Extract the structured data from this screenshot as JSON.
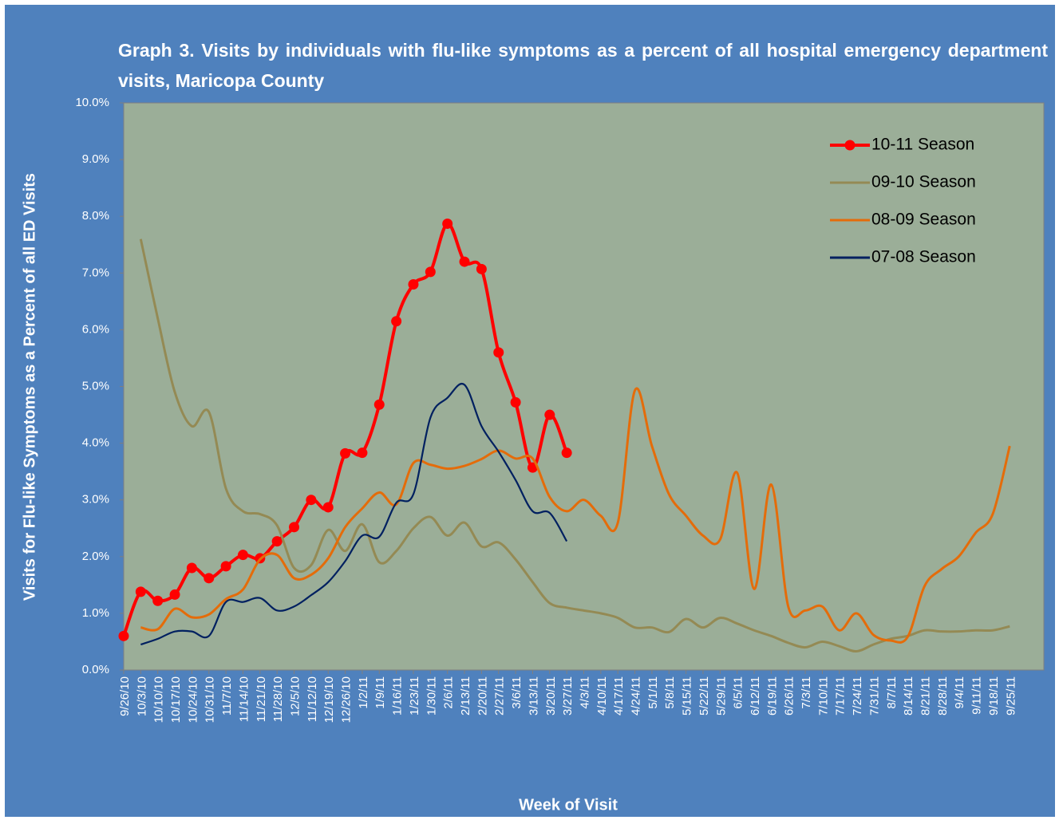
{
  "chart_data": {
    "type": "line",
    "title": "Graph 3. Visits by individuals  with flu-like symptoms  as a percent  of all hospital  emergency department visits, Maricopa  County",
    "x_label": "Week of Visit",
    "y_label": "Visits for Flu-like Symptoms as a Percent of all ED Visits",
    "categories": [
      "9/26/10",
      "10/3/10",
      "10/10/10",
      "10/17/10",
      "10/24/10",
      "10/31/10",
      "11/7/10",
      "11/14/10",
      "11/21/10",
      "11/28/10",
      "12/5/10",
      "11/12/10",
      "12/19/10",
      "12/26/10",
      "1/2/11",
      "1/9/11",
      "1/16/11",
      "1/23/11",
      "1/30/11",
      "2/6/11",
      "2/13/11",
      "2/20/11",
      "2/27/11",
      "3/6/11",
      "3/13/11",
      "3/20/11",
      "3/27/11",
      "4/3/11",
      "4/10/11",
      "4/17/11",
      "4/24/11",
      "5/1/11",
      "5/8/11",
      "5/15/11",
      "5/22/11",
      "5/29/11",
      "6/5/11",
      "6/12/11",
      "6/19/11",
      "6/26/11",
      "7/3/11",
      "7/10/11",
      "7/17/11",
      "7/24/11",
      "7/31/11",
      "8/7/11",
      "8/14/11",
      "8/21/11",
      "8/28/11",
      "9/4/11",
      "9/11/11",
      "9/18/11",
      "9/25/11"
    ],
    "ylim": [
      0,
      10
    ],
    "yticks": [
      {
        "value": 0,
        "label": "0.0%"
      },
      {
        "value": 1,
        "label": "1.0%"
      },
      {
        "value": 2,
        "label": "2.0%"
      },
      {
        "value": 3,
        "label": "3.0%"
      },
      {
        "value": 4,
        "label": "4.0%"
      },
      {
        "value": 5,
        "label": "5.0%"
      },
      {
        "value": 6,
        "label": "6.0%"
      },
      {
        "value": 7,
        "label": "7.0%"
      },
      {
        "value": 8,
        "label": "8.0%"
      },
      {
        "value": 9,
        "label": "9.0%"
      },
      {
        "value": 10,
        "label": "10.0%"
      }
    ],
    "legend": "upper right",
    "series": [
      {
        "name": "10-11 Season",
        "color": "#ff0000",
        "markers": true,
        "values": [
          0.6,
          1.38,
          1.22,
          1.33,
          1.8,
          1.62,
          1.83,
          2.03,
          1.97,
          2.27,
          2.52,
          3.0,
          2.87,
          3.82,
          3.83,
          4.68,
          6.15,
          6.8,
          7.02,
          7.87,
          7.2,
          7.07,
          5.6,
          4.72,
          3.57,
          4.5,
          3.83,
          null,
          null,
          null,
          null,
          null,
          null,
          null,
          null,
          null,
          null,
          null,
          null,
          null,
          null,
          null,
          null,
          null,
          null,
          null,
          null,
          null,
          null,
          null,
          null,
          null,
          null
        ]
      },
      {
        "name": "09-10 Season",
        "color": "#948a54",
        "markers": false,
        "values": [
          null,
          7.6,
          6.2,
          4.9,
          4.3,
          4.55,
          3.2,
          2.8,
          2.75,
          2.55,
          1.8,
          1.85,
          2.47,
          2.1,
          2.57,
          1.9,
          2.1,
          2.5,
          2.7,
          2.37,
          2.6,
          2.18,
          2.25,
          1.95,
          1.55,
          1.18,
          1.1,
          1.05,
          1.0,
          0.92,
          0.75,
          0.75,
          0.67,
          0.9,
          0.75,
          0.92,
          0.82,
          0.7,
          0.6,
          0.48,
          0.4,
          0.5,
          0.42,
          0.33,
          0.45,
          0.55,
          0.6,
          0.7,
          0.68,
          0.68,
          0.7,
          0.7,
          0.77
        ]
      },
      {
        "name": "08-09 Season",
        "color": "#e46c0a",
        "markers": false,
        "values": [
          null,
          0.75,
          0.72,
          1.08,
          0.93,
          0.98,
          1.25,
          1.42,
          1.95,
          2.03,
          1.62,
          1.68,
          1.97,
          2.52,
          2.85,
          3.13,
          2.92,
          3.65,
          3.62,
          3.55,
          3.6,
          3.72,
          3.87,
          3.73,
          3.73,
          3.05,
          2.8,
          3.0,
          2.72,
          2.6,
          4.93,
          3.95,
          3.1,
          2.72,
          2.37,
          2.3,
          3.48,
          1.43,
          3.27,
          1.12,
          1.05,
          1.12,
          0.7,
          1.0,
          0.62,
          0.52,
          0.58,
          1.48,
          1.78,
          2.0,
          2.42,
          2.75,
          3.95
        ]
      },
      {
        "name": "07-08 Season",
        "color": "#002060",
        "markers": false,
        "values": [
          null,
          0.45,
          0.55,
          0.68,
          0.68,
          0.6,
          1.2,
          1.2,
          1.27,
          1.05,
          1.12,
          1.32,
          1.55,
          1.92,
          2.37,
          2.35,
          2.95,
          3.1,
          4.45,
          4.8,
          5.03,
          4.3,
          3.85,
          3.35,
          2.8,
          2.77,
          2.27,
          null,
          null,
          null,
          null,
          null,
          null,
          null,
          null,
          null,
          null,
          null,
          null,
          null,
          null,
          null,
          null,
          null,
          null,
          null,
          null,
          null,
          null,
          null,
          null,
          null,
          null
        ]
      }
    ]
  }
}
